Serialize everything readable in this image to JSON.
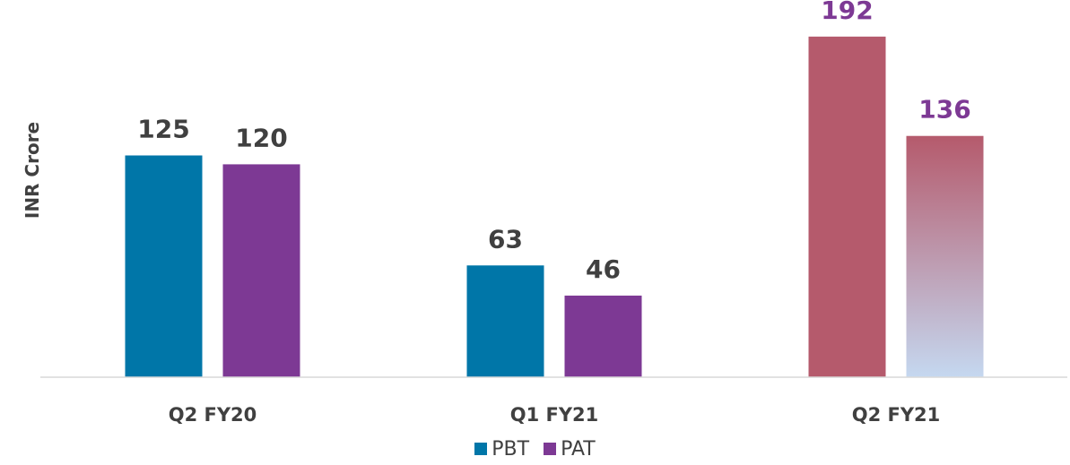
{
  "chart_data": {
    "type": "bar",
    "ylabel": "INR Crore",
    "xlabel": "",
    "categories": [
      "Q2 FY20",
      "Q1 FY21",
      "Q2 FY21"
    ],
    "series": [
      {
        "name": "PBT",
        "values": [
          125,
          63,
          192
        ],
        "color": "#0076A8"
      },
      {
        "name": "PAT",
        "values": [
          120,
          46,
          136
        ],
        "color": "#7D3994"
      }
    ],
    "highlight": {
      "category": "Q2 FY21",
      "bar_color": "#B55A6C",
      "gradient_bottom_color": "#C5D8F0",
      "label_color": "#7D3994"
    },
    "label_color": "#404040",
    "ylim": [
      0,
      200
    ],
    "grid": false,
    "legend": "bottom-center"
  }
}
